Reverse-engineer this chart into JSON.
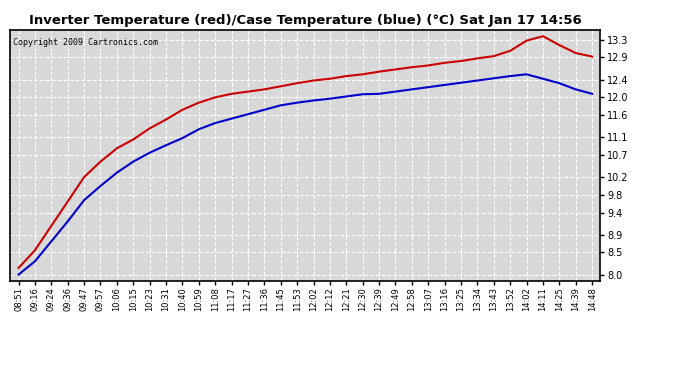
{
  "title": "Inverter Temperature (red)/Case Temperature (blue) (°C) Sat Jan 17 14:56",
  "copyright": "Copyright 2009 Cartronics.com",
  "yticks": [
    8.0,
    8.5,
    8.9,
    9.4,
    9.8,
    10.2,
    10.7,
    11.1,
    11.6,
    12.0,
    12.4,
    12.9,
    13.3
  ],
  "ylim": [
    7.85,
    13.52
  ],
  "red_color": "#cc0000",
  "blue_color": "#0000cc",
  "bg_color": "#ffffff",
  "plot_bg_color": "#d8d8d8",
  "grid_color": "#ffffff",
  "grid_linestyle": "--",
  "xtick_labels": [
    "08:51",
    "09:16",
    "09:24",
    "09:36",
    "09:47",
    "09:57",
    "10:06",
    "10:15",
    "10:23",
    "10:31",
    "10:40",
    "10:59",
    "11:08",
    "11:17",
    "11:27",
    "11:36",
    "11:45",
    "11:53",
    "12:02",
    "12:12",
    "12:21",
    "12:30",
    "12:39",
    "12:49",
    "12:58",
    "13:07",
    "13:16",
    "13:25",
    "13:34",
    "13:43",
    "13:52",
    "14:02",
    "14:11",
    "14:25",
    "14:39",
    "14:48"
  ],
  "red_data": [
    8.15,
    8.55,
    9.1,
    9.65,
    10.2,
    10.55,
    10.85,
    11.05,
    11.3,
    11.5,
    11.72,
    11.88,
    12.0,
    12.08,
    12.13,
    12.18,
    12.25,
    12.32,
    12.38,
    12.42,
    12.48,
    12.52,
    12.58,
    12.63,
    12.68,
    12.72,
    12.78,
    12.82,
    12.88,
    12.93,
    13.05,
    13.28,
    13.38,
    13.18,
    13.0,
    12.92
  ],
  "blue_data": [
    8.0,
    8.3,
    8.75,
    9.2,
    9.68,
    10.0,
    10.3,
    10.55,
    10.75,
    10.92,
    11.08,
    11.28,
    11.42,
    11.52,
    11.62,
    11.72,
    11.82,
    11.88,
    11.93,
    11.97,
    12.02,
    12.07,
    12.08,
    12.13,
    12.18,
    12.23,
    12.28,
    12.33,
    12.38,
    12.43,
    12.48,
    12.52,
    12.42,
    12.32,
    12.18,
    12.08
  ],
  "line_width": 1.5,
  "title_fontsize": 9.5,
  "copyright_fontsize": 6,
  "ytick_fontsize": 7,
  "xtick_fontsize": 6
}
